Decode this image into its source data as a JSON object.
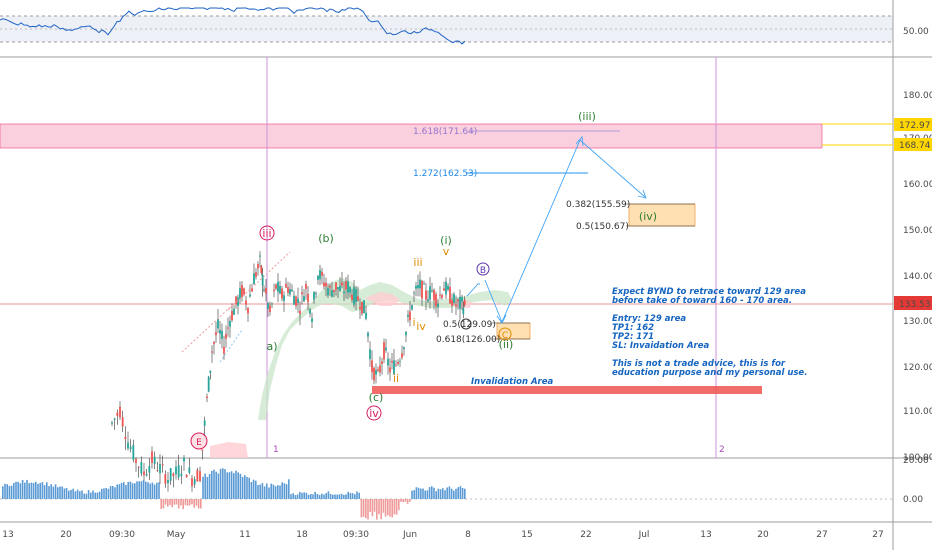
{
  "chart_data": {
    "type": "candlestick",
    "ticker": "BYND",
    "price_axis": {
      "ticks": [
        "180.00",
        "170.00",
        "160.00",
        "150.00",
        "140.00",
        "130.00",
        "120.00",
        "110.00",
        "100.00"
      ],
      "last_price": "133.53",
      "zone_top_label": "172.97",
      "zone_bottom_label": "168.74"
    },
    "rsi_axis": {
      "ticks": [
        "50.00"
      ]
    },
    "osc_axis": {
      "ticks": [
        "20.00",
        "0.00"
      ]
    },
    "x_axis": {
      "ticks": [
        "13",
        "20",
        "09:30",
        "May",
        "11",
        "18",
        "09:30",
        "Jun",
        "8",
        "15",
        "22",
        "Jul",
        "13",
        "20",
        "27"
      ]
    },
    "levels": [
      {
        "label": "1.618(171.64)",
        "price": 171.64,
        "color": "#b39ddb"
      },
      {
        "label": "1.272(162.53)",
        "price": 162.53,
        "color": "#2196f3"
      },
      {
        "label": "0.382(155.59)",
        "price": 155.59,
        "color": "#333333"
      },
      {
        "label": "0.5(150.67)",
        "price": 150.67,
        "color": "#333333"
      },
      {
        "label": "0.5(129.09)",
        "price": 129.09,
        "color": "#333333"
      },
      {
        "label": "0.618(126.00)",
        "price": 126.0,
        "color": "#333333"
      }
    ],
    "wave_labels": [
      {
        "text": "iii",
        "color": "#d81b60"
      },
      {
        "text": "(b)",
        "color": "#2e7d32"
      },
      {
        "text": "a)",
        "color": "#2e7d32"
      },
      {
        "text": "(i)",
        "color": "#2e7d32"
      },
      {
        "text": "iii",
        "color": "#e08a00"
      },
      {
        "text": "i",
        "color": "#e08a00"
      },
      {
        "text": "iv",
        "color": "#e08a00"
      },
      {
        "text": "ii",
        "color": "#e08a00"
      },
      {
        "text": "v",
        "color": "#e08a00"
      },
      {
        "text": "B",
        "color": "#5e35b1"
      },
      {
        "text": "C",
        "color": "#e08a00"
      },
      {
        "text": "(c)",
        "color": "#2e7d32"
      },
      {
        "text": "iv",
        "color": "#d81b60"
      },
      {
        "text": "E",
        "color": "#d81b60"
      },
      {
        "text": "(ii)",
        "color": "#2e7d32"
      },
      {
        "text": "(iii)",
        "color": "#2e7d32"
      },
      {
        "text": "(iv)",
        "color": "#2e7d32"
      }
    ],
    "vline_labels": [
      "1",
      "2"
    ],
    "invalidation_label": "Invalidation Area",
    "notes": [
      "Expect BYND to retrace toward 129 area",
      "before take of toward 160 - 170 area.",
      "",
      "Entry: 129 area",
      "TP1: 162",
      "TP2: 171",
      "SL: Invaidation Area",
      "",
      "This is not a trade advice, this is for",
      "education purpose and my personal use."
    ]
  }
}
